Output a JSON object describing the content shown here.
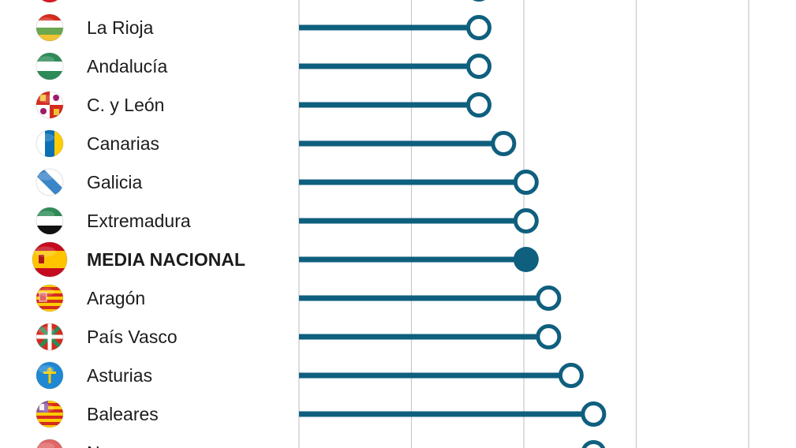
{
  "chart_data": {
    "type": "lollipop",
    "orientation": "horizontal",
    "grid": true,
    "xlim": [
      0,
      100
    ],
    "gridlines": [
      0,
      25,
      50,
      75,
      100
    ],
    "colors": {
      "series": "#0f5f7e",
      "grid": "#c8c8c8",
      "text": "#1c1c1c"
    },
    "rows": [
      {
        "label": "",
        "value": 40,
        "flag": "red-circle-flag-icon",
        "highlight": false,
        "partial": "top"
      },
      {
        "label": "La Rioja",
        "value": 40,
        "flag": "la-rioja-flag-icon",
        "highlight": false
      },
      {
        "label": "Andalucía",
        "value": 40,
        "flag": "andalucia-flag-icon",
        "highlight": false
      },
      {
        "label": "C. y León",
        "value": 40,
        "flag": "castilla-y-leon-flag-icon",
        "highlight": false
      },
      {
        "label": "Canarias",
        "value": 45.5,
        "flag": "canarias-flag-icon",
        "highlight": false
      },
      {
        "label": "Galicia",
        "value": 50.5,
        "flag": "galicia-flag-icon",
        "highlight": false
      },
      {
        "label": "Extremadura",
        "value": 50.5,
        "flag": "extremadura-flag-icon",
        "highlight": false
      },
      {
        "label": "MEDIA NACIONAL",
        "value": 50.5,
        "flag": "spain-flag-icon",
        "highlight": true
      },
      {
        "label": "Aragón",
        "value": 55.5,
        "flag": "aragon-flag-icon",
        "highlight": false
      },
      {
        "label": "País Vasco",
        "value": 55.5,
        "flag": "pais-vasco-flag-icon",
        "highlight": false
      },
      {
        "label": "Asturias",
        "value": 60.5,
        "flag": "asturias-flag-icon",
        "highlight": false
      },
      {
        "label": "Baleares",
        "value": 65.5,
        "flag": "baleares-flag-icon",
        "highlight": false
      },
      {
        "label": "Na",
        "value": 65.5,
        "flag": "navarra-flag-icon",
        "highlight": false,
        "partial": "bottom"
      }
    ]
  }
}
